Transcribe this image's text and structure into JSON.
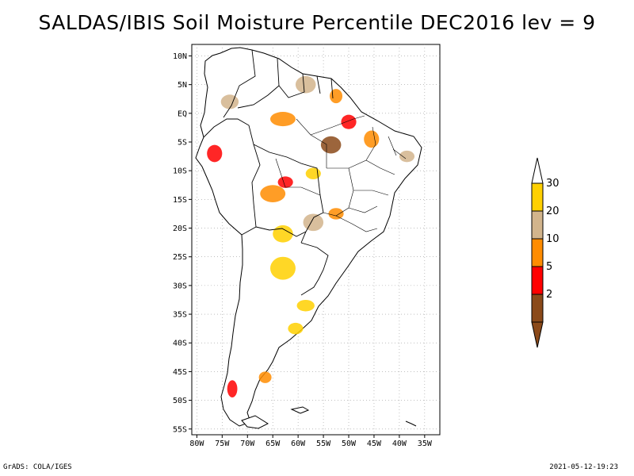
{
  "title": "SALDAS/IBIS Soil Moisture Percentile DEC2016 lev = 9",
  "footer": {
    "left": "GrADS: COLA/IGES",
    "right": "2021-05-12-19:23"
  },
  "map": {
    "lon_range": [
      -81,
      -32
    ],
    "lat_range": [
      -56,
      12
    ],
    "lon_ticks": [
      {
        "value": -80,
        "label": "80W"
      },
      {
        "value": -75,
        "label": "75W"
      },
      {
        "value": -70,
        "label": "70W"
      },
      {
        "value": -65,
        "label": "65W"
      },
      {
        "value": -60,
        "label": "60W"
      },
      {
        "value": -55,
        "label": "55W"
      },
      {
        "value": -50,
        "label": "50W"
      },
      {
        "value": -45,
        "label": "45W"
      },
      {
        "value": -40,
        "label": "40W"
      },
      {
        "value": -35,
        "label": "35W"
      }
    ],
    "lat_ticks": [
      {
        "value": 10,
        "label": "10N"
      },
      {
        "value": 5,
        "label": "5N"
      },
      {
        "value": 0,
        "label": "EQ"
      },
      {
        "value": -5,
        "label": "5S"
      },
      {
        "value": -10,
        "label": "10S"
      },
      {
        "value": -15,
        "label": "15S"
      },
      {
        "value": -20,
        "label": "20S"
      },
      {
        "value": -25,
        "label": "25S"
      },
      {
        "value": -30,
        "label": "30S"
      },
      {
        "value": -35,
        "label": "35S"
      },
      {
        "value": -40,
        "label": "40S"
      },
      {
        "value": -45,
        "label": "45S"
      },
      {
        "value": -50,
        "label": "50S"
      },
      {
        "value": -55,
        "label": "55S"
      }
    ],
    "patches": [
      {
        "name": "dry-patch-north-para",
        "lon": -53.5,
        "lat": -5.5,
        "w": 4.0,
        "h": 3.0,
        "color": "#8b4a1a"
      },
      {
        "name": "dry-patch-amapa",
        "lon": -52.5,
        "lat": 3.0,
        "w": 2.5,
        "h": 2.5,
        "color": "#ff8c00"
      },
      {
        "name": "dry-patch-marajo",
        "lon": -50.0,
        "lat": -1.5,
        "w": 3.0,
        "h": 2.5,
        "color": "#ff0000"
      },
      {
        "name": "dry-patch-maranhao",
        "lon": -45.5,
        "lat": -4.5,
        "w": 3.0,
        "h": 3.0,
        "color": "#ff8c00"
      },
      {
        "name": "dry-patch-guyana",
        "lon": -58.5,
        "lat": 5.0,
        "w": 4.0,
        "h": 3.0,
        "color": "#d2b48c"
      },
      {
        "name": "dry-patch-amazonas",
        "lon": -63.0,
        "lat": -1.0,
        "w": 5.0,
        "h": 2.5,
        "color": "#ff8c00"
      },
      {
        "name": "dry-patch-peru",
        "lon": -76.5,
        "lat": -7.0,
        "w": 3.0,
        "h": 3.0,
        "color": "#ff0000"
      },
      {
        "name": "dry-patch-colombia",
        "lon": -73.5,
        "lat": 2.0,
        "w": 3.5,
        "h": 2.5,
        "color": "#d2b48c"
      },
      {
        "name": "dry-patch-bolivia",
        "lon": -65.0,
        "lat": -14.0,
        "w": 5.0,
        "h": 3.0,
        "color": "#ff8c00"
      },
      {
        "name": "dry-patch-rondonia",
        "lon": -62.5,
        "lat": -12.0,
        "w": 3.0,
        "h": 2.0,
        "color": "#ff0000"
      },
      {
        "name": "dry-patch-pantanal",
        "lon": -57.0,
        "lat": -19.0,
        "w": 4.0,
        "h": 3.0,
        "color": "#d2b48c"
      },
      {
        "name": "dry-patch-chaco",
        "lon": -63.0,
        "lat": -21.0,
        "w": 4.0,
        "h": 3.0,
        "color": "#ffd000"
      },
      {
        "name": "dry-patch-goias",
        "lon": -52.5,
        "lat": -17.5,
        "w": 3.0,
        "h": 2.0,
        "color": "#ff8c00"
      },
      {
        "name": "dry-patch-argentina-n",
        "lon": -63.0,
        "lat": -27.0,
        "w": 5.0,
        "h": 4.0,
        "color": "#ffd000"
      },
      {
        "name": "dry-patch-buenos-aires",
        "lon": -58.5,
        "lat": -33.5,
        "w": 3.5,
        "h": 2.0,
        "color": "#ffd000"
      },
      {
        "name": "dry-patch-pampas",
        "lon": -60.5,
        "lat": -37.5,
        "w": 3.0,
        "h": 2.0,
        "color": "#ffd000"
      },
      {
        "name": "dry-patch-patagonia",
        "lon": -66.5,
        "lat": -46.0,
        "w": 2.5,
        "h": 2.0,
        "color": "#ff8c00"
      },
      {
        "name": "dry-patch-chile-south",
        "lon": -73.0,
        "lat": -48.0,
        "w": 2.0,
        "h": 3.0,
        "color": "#ff0000"
      },
      {
        "name": "dry-patch-mato-grosso",
        "lon": -57.0,
        "lat": -10.5,
        "w": 3.0,
        "h": 2.0,
        "color": "#ffd000"
      },
      {
        "name": "dry-patch-pernambuco",
        "lon": -38.5,
        "lat": -7.5,
        "w": 3.0,
        "h": 2.0,
        "color": "#d2b48c"
      }
    ]
  },
  "colorbar": {
    "segments": [
      {
        "label": "30",
        "color": "#ffd000"
      },
      {
        "label": "20",
        "color": "#d2b48c"
      },
      {
        "label": "10",
        "color": "#ff8c00"
      },
      {
        "label": "5",
        "color": "#ff0000"
      },
      {
        "label": "2",
        "color": "#8b4a1a"
      }
    ],
    "top_color": "#ffffff",
    "bottom_color": "#8b4a1a"
  }
}
